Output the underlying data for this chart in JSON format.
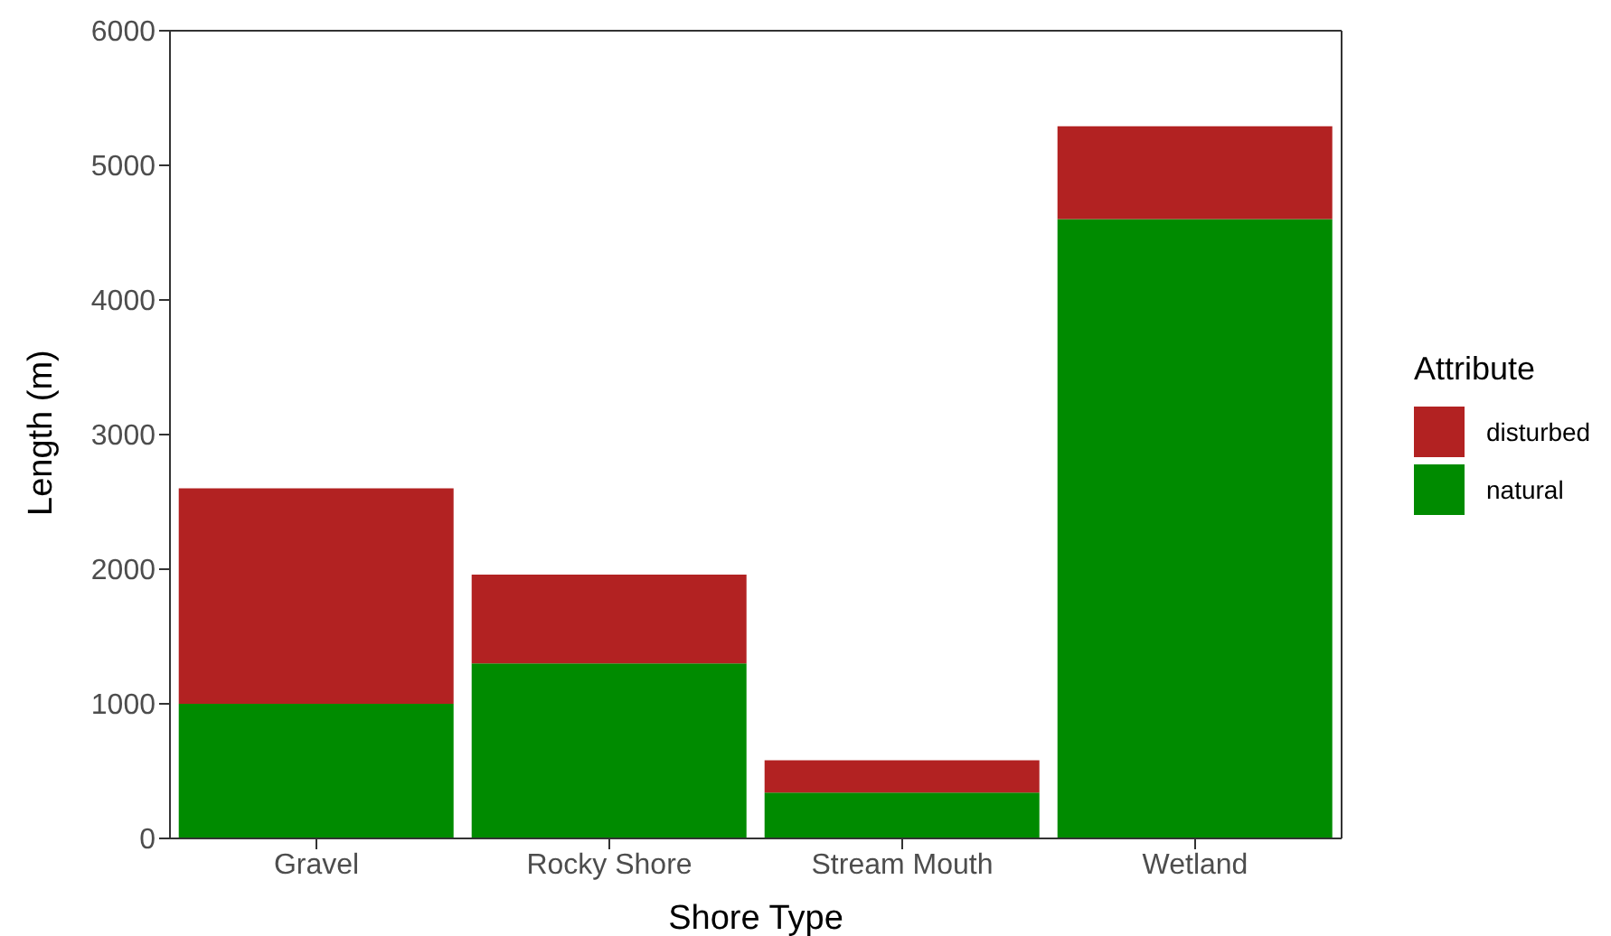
{
  "chart_data": {
    "type": "bar",
    "stacked": true,
    "xlabel": "Shore Type",
    "ylabel": "Length (m)",
    "legend_title": "Attribute",
    "legend": "right",
    "grid": false,
    "categories": [
      "Gravel",
      "Rocky Shore",
      "Stream Mouth",
      "Wetland"
    ],
    "series": [
      {
        "name": "natural",
        "color": "#008b00",
        "values": [
          1000,
          1300,
          340,
          4600
        ]
      },
      {
        "name": "disturbed",
        "color": "#b22222",
        "values": [
          1600,
          660,
          240,
          690
        ]
      }
    ],
    "ylim": [
      0,
      6000
    ],
    "yticks": [
      0,
      1000,
      2000,
      3000,
      4000,
      5000,
      6000
    ]
  }
}
